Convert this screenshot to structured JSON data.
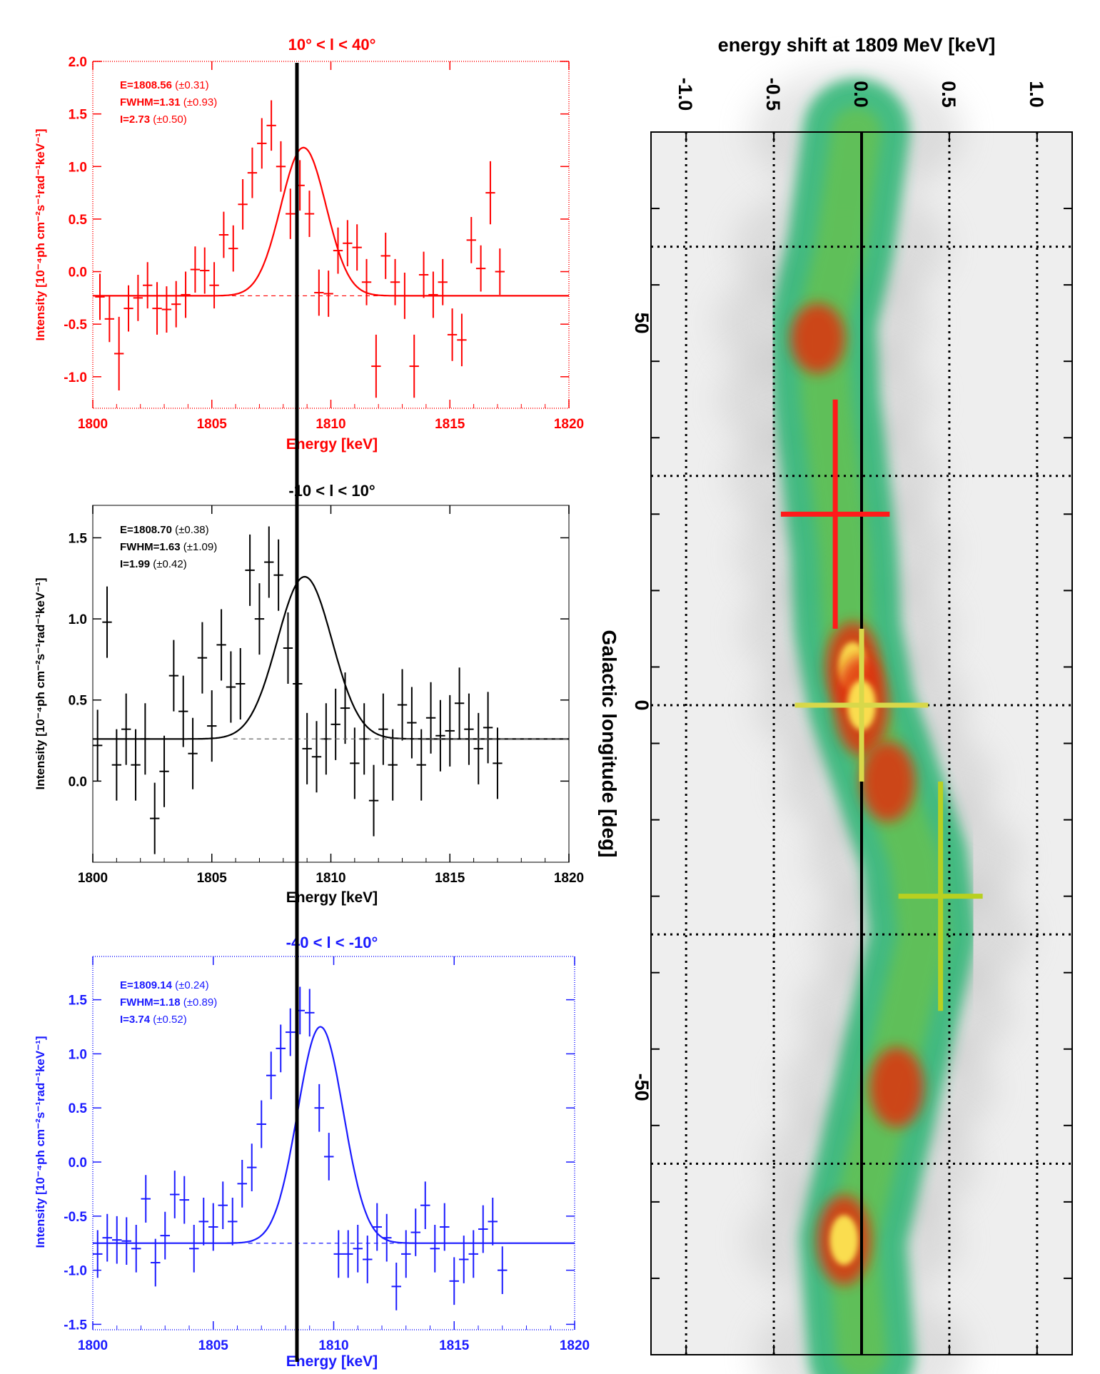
{
  "colors": {
    "red": "#ff0000",
    "black": "#000000",
    "blue": "#1a1aff",
    "map_green": "#2bb673",
    "map_yellow": "#ffee55",
    "cross_red": "#ff1a1a",
    "cross_yellow": "#d8d84a",
    "cross_lime": "#b8d020"
  },
  "chart_data": [
    {
      "type": "scatter",
      "panel": "top",
      "title": "10° < l < 40°",
      "xlabel": "Energy [keV]",
      "ylabel": "Intensity [10⁻⁴ph cm⁻²s⁻¹rad⁻¹keV⁻¹]",
      "xlim": [
        1800,
        1820
      ],
      "ylim": [
        -1.3,
        2.0
      ],
      "xticks": [
        1800,
        1805,
        1810,
        1815,
        1820
      ],
      "yticks": [
        -1.0,
        -0.5,
        0.0,
        0.5,
        1.0,
        1.5,
        2.0
      ],
      "ytick_labels": [
        "-1.0",
        "-0.5",
        "0.0",
        "0.5",
        "1.0",
        "1.5",
        "2.0"
      ],
      "annotations": [
        "E=1808.56",
        "(±0.31)",
        "FWHM=1.31",
        "(±0.93)",
        "I=2.73",
        "(±0.50)"
      ],
      "fit": {
        "center": 1808.85,
        "sigma": 0.95,
        "amplitude": 1.41,
        "baseline": -0.23
      },
      "points": [
        {
          "x": 1800.3,
          "y": -0.24,
          "e": 0.22
        },
        {
          "x": 1800.7,
          "y": -0.45,
          "e": 0.22
        },
        {
          "x": 1801.1,
          "y": -0.78,
          "e": 0.35
        },
        {
          "x": 1801.5,
          "y": -0.35,
          "e": 0.22
        },
        {
          "x": 1801.9,
          "y": -0.25,
          "e": 0.22
        },
        {
          "x": 1802.3,
          "y": -0.13,
          "e": 0.22
        },
        {
          "x": 1802.7,
          "y": -0.35,
          "e": 0.25
        },
        {
          "x": 1803.1,
          "y": -0.36,
          "e": 0.22
        },
        {
          "x": 1803.5,
          "y": -0.31,
          "e": 0.22
        },
        {
          "x": 1803.9,
          "y": -0.22,
          "e": 0.22
        },
        {
          "x": 1804.3,
          "y": 0.02,
          "e": 0.22
        },
        {
          "x": 1804.7,
          "y": 0.01,
          "e": 0.22
        },
        {
          "x": 1805.1,
          "y": -0.13,
          "e": 0.22
        },
        {
          "x": 1805.5,
          "y": 0.35,
          "e": 0.22
        },
        {
          "x": 1805.9,
          "y": 0.22,
          "e": 0.22
        },
        {
          "x": 1806.3,
          "y": 0.64,
          "e": 0.24
        },
        {
          "x": 1806.7,
          "y": 0.94,
          "e": 0.24
        },
        {
          "x": 1807.1,
          "y": 1.22,
          "e": 0.24
        },
        {
          "x": 1807.5,
          "y": 1.39,
          "e": 0.24
        },
        {
          "x": 1807.9,
          "y": 1.0,
          "e": 0.24
        },
        {
          "x": 1808.3,
          "y": 0.55,
          "e": 0.24
        },
        {
          "x": 1808.7,
          "y": 0.82,
          "e": 0.24
        },
        {
          "x": 1809.1,
          "y": 0.55,
          "e": 0.22
        },
        {
          "x": 1809.5,
          "y": -0.2,
          "e": 0.22
        },
        {
          "x": 1809.9,
          "y": -0.21,
          "e": 0.22
        },
        {
          "x": 1810.3,
          "y": 0.2,
          "e": 0.22
        },
        {
          "x": 1810.7,
          "y": 0.27,
          "e": 0.22
        },
        {
          "x": 1811.1,
          "y": 0.23,
          "e": 0.22
        },
        {
          "x": 1811.5,
          "y": -0.1,
          "e": 0.22
        },
        {
          "x": 1811.9,
          "y": -0.9,
          "e": 0.3
        },
        {
          "x": 1812.3,
          "y": 0.15,
          "e": 0.22
        },
        {
          "x": 1812.7,
          "y": -0.1,
          "e": 0.22
        },
        {
          "x": 1813.1,
          "y": -0.23,
          "e": 0.22
        },
        {
          "x": 1813.5,
          "y": -0.9,
          "e": 0.3
        },
        {
          "x": 1813.9,
          "y": -0.03,
          "e": 0.22
        },
        {
          "x": 1814.3,
          "y": -0.22,
          "e": 0.22
        },
        {
          "x": 1814.7,
          "y": -0.1,
          "e": 0.22
        },
        {
          "x": 1815.1,
          "y": -0.6,
          "e": 0.25
        },
        {
          "x": 1815.5,
          "y": -0.65,
          "e": 0.25
        },
        {
          "x": 1815.9,
          "y": 0.3,
          "e": 0.22
        },
        {
          "x": 1816.3,
          "y": 0.03,
          "e": 0.22
        },
        {
          "x": 1816.7,
          "y": 0.75,
          "e": 0.3
        },
        {
          "x": 1817.1,
          "y": 0.0,
          "e": 0.22
        }
      ]
    },
    {
      "type": "scatter",
      "panel": "middle",
      "title": "-10 < l < 10°",
      "xlabel": "Energy [keV]",
      "ylabel": "Intensity [10⁻⁴ph cm⁻²s⁻¹rad⁻¹keV⁻¹]",
      "xlim": [
        1800,
        1820
      ],
      "ylim": [
        -0.5,
        1.7
      ],
      "xticks": [
        1800,
        1805,
        1810,
        1815,
        1820
      ],
      "yticks": [
        0.0,
        0.5,
        1.0,
        1.5
      ],
      "ytick_labels": [
        "0.0",
        "0.5",
        "1.0",
        "1.5"
      ],
      "annotations": [
        "E=1808.70",
        "(±0.38)",
        "FWHM=1.63",
        "(±1.09)",
        "I=1.99",
        "(±0.42)"
      ],
      "fit": {
        "center": 1808.9,
        "sigma": 1.15,
        "amplitude": 1.0,
        "baseline": 0.26
      },
      "points": [
        {
          "x": 1800.2,
          "y": 0.22,
          "e": 0.22
        },
        {
          "x": 1800.6,
          "y": 0.98,
          "e": 0.22
        },
        {
          "x": 1801.0,
          "y": 0.1,
          "e": 0.22
        },
        {
          "x": 1801.4,
          "y": 0.32,
          "e": 0.22
        },
        {
          "x": 1801.8,
          "y": 0.1,
          "e": 0.22
        },
        {
          "x": 1802.2,
          "y": 0.26,
          "e": 0.22
        },
        {
          "x": 1802.6,
          "y": -0.23,
          "e": 0.22
        },
        {
          "x": 1803.0,
          "y": 0.06,
          "e": 0.22
        },
        {
          "x": 1803.4,
          "y": 0.65,
          "e": 0.22
        },
        {
          "x": 1803.8,
          "y": 0.43,
          "e": 0.22
        },
        {
          "x": 1804.2,
          "y": 0.17,
          "e": 0.22
        },
        {
          "x": 1804.6,
          "y": 0.76,
          "e": 0.22
        },
        {
          "x": 1805.0,
          "y": 0.34,
          "e": 0.22
        },
        {
          "x": 1805.4,
          "y": 0.84,
          "e": 0.22
        },
        {
          "x": 1805.8,
          "y": 0.58,
          "e": 0.22
        },
        {
          "x": 1806.2,
          "y": 0.6,
          "e": 0.22
        },
        {
          "x": 1806.6,
          "y": 1.3,
          "e": 0.22
        },
        {
          "x": 1807.0,
          "y": 1.0,
          "e": 0.22
        },
        {
          "x": 1807.4,
          "y": 1.35,
          "e": 0.22
        },
        {
          "x": 1807.8,
          "y": 1.27,
          "e": 0.22
        },
        {
          "x": 1808.2,
          "y": 0.82,
          "e": 0.22
        },
        {
          "x": 1808.6,
          "y": 0.6,
          "e": 0.22
        },
        {
          "x": 1809.0,
          "y": 0.2,
          "e": 0.22
        },
        {
          "x": 1809.4,
          "y": 0.15,
          "e": 0.22
        },
        {
          "x": 1809.8,
          "y": 0.26,
          "e": 0.22
        },
        {
          "x": 1810.2,
          "y": 0.35,
          "e": 0.22
        },
        {
          "x": 1810.6,
          "y": 0.45,
          "e": 0.22
        },
        {
          "x": 1811.0,
          "y": 0.11,
          "e": 0.22
        },
        {
          "x": 1811.4,
          "y": 0.26,
          "e": 0.22
        },
        {
          "x": 1811.8,
          "y": -0.12,
          "e": 0.22
        },
        {
          "x": 1812.2,
          "y": 0.32,
          "e": 0.22
        },
        {
          "x": 1812.6,
          "y": 0.1,
          "e": 0.22
        },
        {
          "x": 1813.0,
          "y": 0.47,
          "e": 0.22
        },
        {
          "x": 1813.4,
          "y": 0.36,
          "e": 0.22
        },
        {
          "x": 1813.8,
          "y": 0.1,
          "e": 0.22
        },
        {
          "x": 1814.2,
          "y": 0.39,
          "e": 0.22
        },
        {
          "x": 1814.6,
          "y": 0.28,
          "e": 0.22
        },
        {
          "x": 1815.0,
          "y": 0.31,
          "e": 0.22
        },
        {
          "x": 1815.4,
          "y": 0.48,
          "e": 0.22
        },
        {
          "x": 1815.8,
          "y": 0.32,
          "e": 0.22
        },
        {
          "x": 1816.2,
          "y": 0.2,
          "e": 0.22
        },
        {
          "x": 1816.6,
          "y": 0.33,
          "e": 0.22
        },
        {
          "x": 1817.0,
          "y": 0.11,
          "e": 0.22
        }
      ]
    },
    {
      "type": "scatter",
      "panel": "bottom",
      "title": "-40 < l < -10°",
      "xlabel": "Energy [keV]",
      "ylabel": "Intensity [10⁻⁴ph cm⁻²s⁻¹rad⁻¹keV⁻¹]",
      "xlim": [
        1800,
        1820
      ],
      "ylim": [
        -1.55,
        1.9
      ],
      "xticks": [
        1800,
        1805,
        1810,
        1815,
        1820
      ],
      "yticks": [
        -1.5,
        -1.0,
        -0.5,
        0.0,
        0.5,
        1.0,
        1.5
      ],
      "ytick_labels": [
        "-1.5",
        "-1.0",
        "-0.5",
        "0.0",
        "0.5",
        "1.0",
        "1.5"
      ],
      "annotations": [
        "E=1809.14",
        "(±0.24)",
        "FWHM=1.18",
        "(±0.89)",
        "I=3.74",
        "(±0.52)"
      ],
      "fit": {
        "center": 1809.45,
        "sigma": 0.95,
        "amplitude": 2.0,
        "baseline": -0.75
      },
      "points": [
        {
          "x": 1800.2,
          "y": -0.85,
          "e": 0.22
        },
        {
          "x": 1800.6,
          "y": -0.7,
          "e": 0.22
        },
        {
          "x": 1801.0,
          "y": -0.72,
          "e": 0.22
        },
        {
          "x": 1801.4,
          "y": -0.73,
          "e": 0.22
        },
        {
          "x": 1801.8,
          "y": -0.8,
          "e": 0.22
        },
        {
          "x": 1802.2,
          "y": -0.34,
          "e": 0.22
        },
        {
          "x": 1802.6,
          "y": -0.93,
          "e": 0.22
        },
        {
          "x": 1803.0,
          "y": -0.68,
          "e": 0.22
        },
        {
          "x": 1803.4,
          "y": -0.3,
          "e": 0.22
        },
        {
          "x": 1803.8,
          "y": -0.35,
          "e": 0.22
        },
        {
          "x": 1804.2,
          "y": -0.8,
          "e": 0.22
        },
        {
          "x": 1804.6,
          "y": -0.55,
          "e": 0.22
        },
        {
          "x": 1805.0,
          "y": -0.6,
          "e": 0.22
        },
        {
          "x": 1805.4,
          "y": -0.4,
          "e": 0.22
        },
        {
          "x": 1805.8,
          "y": -0.55,
          "e": 0.22
        },
        {
          "x": 1806.2,
          "y": -0.2,
          "e": 0.22
        },
        {
          "x": 1806.6,
          "y": -0.05,
          "e": 0.22
        },
        {
          "x": 1807.0,
          "y": 0.35,
          "e": 0.22
        },
        {
          "x": 1807.4,
          "y": 0.8,
          "e": 0.22
        },
        {
          "x": 1807.8,
          "y": 1.05,
          "e": 0.22
        },
        {
          "x": 1808.2,
          "y": 1.2,
          "e": 0.22
        },
        {
          "x": 1808.6,
          "y": 1.4,
          "e": 0.22
        },
        {
          "x": 1809.0,
          "y": 1.38,
          "e": 0.22
        },
        {
          "x": 1809.4,
          "y": 0.5,
          "e": 0.22
        },
        {
          "x": 1809.8,
          "y": 0.05,
          "e": 0.22
        },
        {
          "x": 1810.2,
          "y": -0.85,
          "e": 0.22
        },
        {
          "x": 1810.6,
          "y": -0.85,
          "e": 0.22
        },
        {
          "x": 1811.0,
          "y": -0.8,
          "e": 0.22
        },
        {
          "x": 1811.4,
          "y": -0.9,
          "e": 0.22
        },
        {
          "x": 1811.8,
          "y": -0.6,
          "e": 0.22
        },
        {
          "x": 1812.2,
          "y": -0.7,
          "e": 0.22
        },
        {
          "x": 1812.6,
          "y": -1.15,
          "e": 0.22
        },
        {
          "x": 1813.0,
          "y": -0.85,
          "e": 0.22
        },
        {
          "x": 1813.4,
          "y": -0.65,
          "e": 0.22
        },
        {
          "x": 1813.8,
          "y": -0.4,
          "e": 0.22
        },
        {
          "x": 1814.2,
          "y": -0.8,
          "e": 0.22
        },
        {
          "x": 1814.6,
          "y": -0.6,
          "e": 0.22
        },
        {
          "x": 1815.0,
          "y": -1.1,
          "e": 0.22
        },
        {
          "x": 1815.4,
          "y": -0.9,
          "e": 0.22
        },
        {
          "x": 1815.8,
          "y": -0.85,
          "e": 0.22
        },
        {
          "x": 1816.2,
          "y": -0.62,
          "e": 0.22
        },
        {
          "x": 1816.6,
          "y": -0.55,
          "e": 0.22
        },
        {
          "x": 1817.0,
          "y": -1.0,
          "e": 0.22
        }
      ]
    },
    {
      "type": "heatmap",
      "panel": "map",
      "title": "energy shift at 1809 MeV [keV]",
      "xlabel": "Galactic longitude [deg]",
      "ylabel": "energy shift at 1809 MeV [keV]",
      "longitude_ticks": [
        50,
        0,
        -50
      ],
      "longitude_tick_labels": [
        "50",
        "0",
        "-50"
      ],
      "longitude_grid": [
        60,
        30,
        0,
        -30,
        -60
      ],
      "longitude_range": [
        75,
        -85
      ],
      "shift_ticks": [
        -1.0,
        -0.5,
        0.0,
        0.5,
        1.0
      ],
      "shift_tick_labels": [
        "-1.0",
        "-0.5",
        "0.0",
        "0.5",
        "1.0"
      ],
      "shift_range": [
        -1.2,
        1.2
      ],
      "crosses": [
        {
          "l": 25,
          "dl": 15,
          "shift": -0.15,
          "dshift": 0.31,
          "color": "red"
        },
        {
          "l": 0,
          "dl": 10,
          "shift": 0.0,
          "dshift": 0.38,
          "color": "yellow"
        },
        {
          "l": -25,
          "dl": 15,
          "shift": 0.45,
          "dshift": 0.24,
          "color": "lime"
        }
      ],
      "ridge": [
        {
          "l": 75,
          "shift": -0.03
        },
        {
          "l": 60,
          "shift": -0.12
        },
        {
          "l": 50,
          "shift": -0.22
        },
        {
          "l": 40,
          "shift": -0.2
        },
        {
          "l": 30,
          "shift": -0.15
        },
        {
          "l": 20,
          "shift": -0.1
        },
        {
          "l": 10,
          "shift": -0.08
        },
        {
          "l": 0,
          "shift": 0.0
        },
        {
          "l": -10,
          "shift": 0.15
        },
        {
          "l": -20,
          "shift": 0.3
        },
        {
          "l": -30,
          "shift": 0.35
        },
        {
          "l": -40,
          "shift": 0.25
        },
        {
          "l": -50,
          "shift": 0.15
        },
        {
          "l": -60,
          "shift": 0.05
        },
        {
          "l": -70,
          "shift": -0.05
        },
        {
          "l": -85,
          "shift": 0.0
        }
      ],
      "bright_spots": [
        {
          "l": 48,
          "shift": -0.25,
          "level": 0.7
        },
        {
          "l": 5,
          "shift": -0.05,
          "level": 0.9
        },
        {
          "l": 0,
          "shift": 0.0,
          "level": 1.0
        },
        {
          "l": -10,
          "shift": 0.15,
          "level": 0.8
        },
        {
          "l": -50,
          "shift": 0.2,
          "level": 0.8
        },
        {
          "l": -70,
          "shift": -0.1,
          "level": 0.9
        }
      ]
    }
  ]
}
